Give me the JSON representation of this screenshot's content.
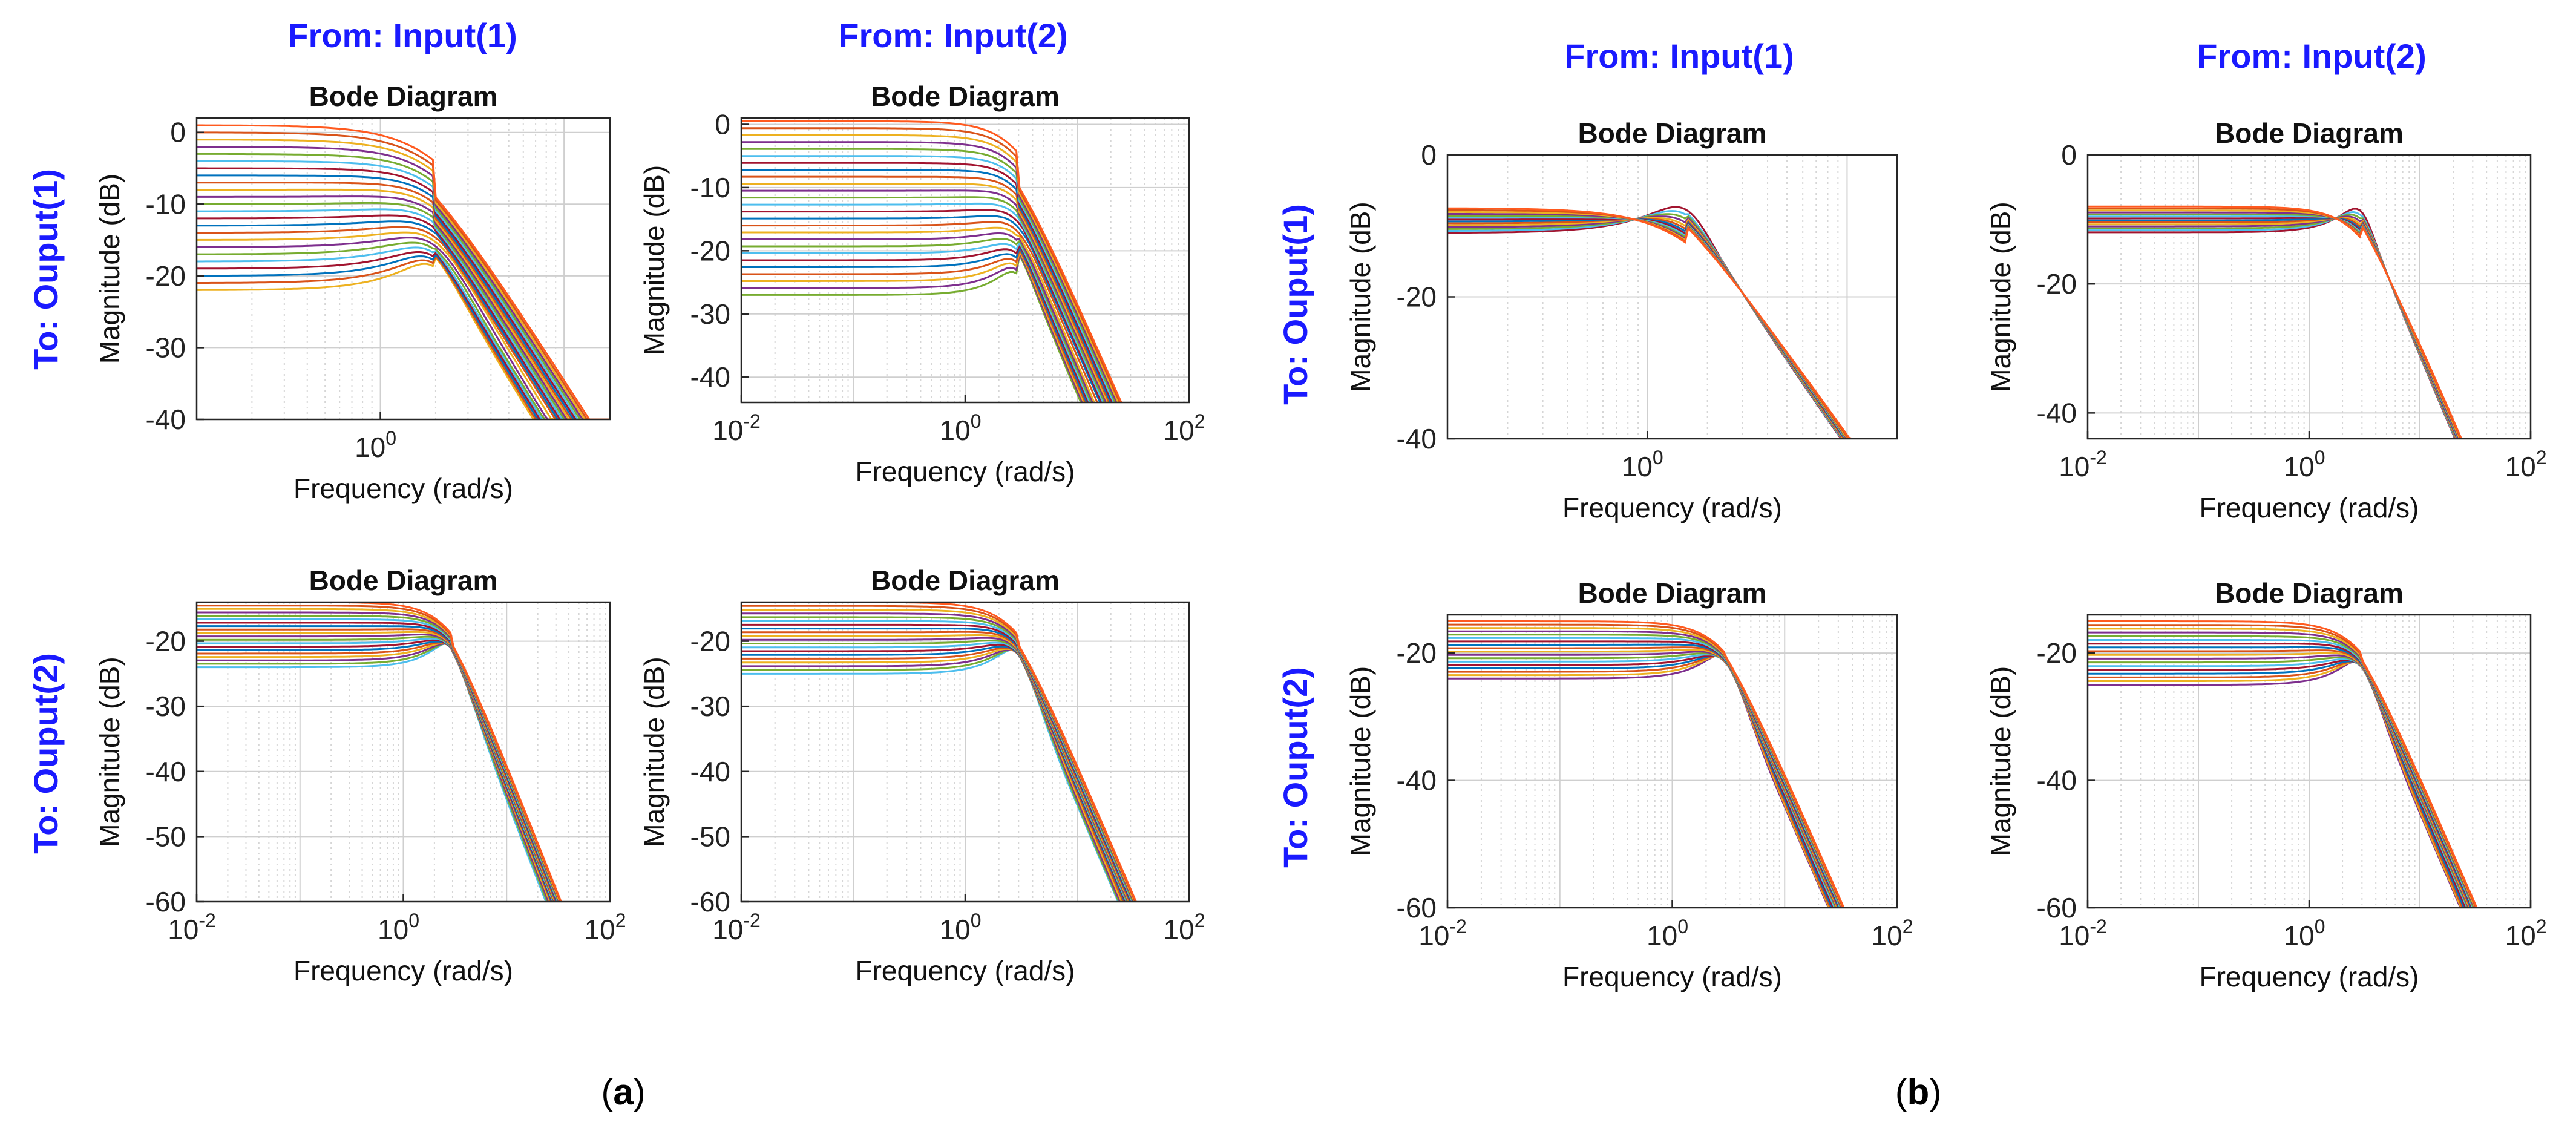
{
  "panels": [
    {
      "label": "(a)",
      "col_titles": [
        "From: Input(1)",
        "From: Input(2)"
      ],
      "row_titles": [
        "To: Ouput(1)",
        "To: Ouput(2)"
      ],
      "plots": [
        {
          "col": 0,
          "row": 0,
          "title": "Bode Diagram",
          "xlabel": "Frequency  (rad/s)",
          "ylabel": "Magnitude (dB)",
          "xlim_log10": [
            -1,
            1.25
          ],
          "xtick_exps": [
            "0"
          ],
          "ylim": [
            -40,
            2
          ],
          "yticks": [
            0,
            -10,
            -20,
            -30,
            -40
          ],
          "curves": {
            "type": "lowpass-2nd",
            "dc_start": 1,
            "dc_end": -22,
            "hf_level": -40,
            "wn": 2,
            "peak": -14,
            "n": 24
          }
        },
        {
          "col": 1,
          "row": 0,
          "title": "Bode Diagram",
          "xlabel": "Frequency  (rad/s)",
          "ylabel": "Magnitude (dB)",
          "xlim_log10": [
            -2,
            2
          ],
          "xtick_exps": [
            "-2",
            "0",
            "2"
          ],
          "ylim": [
            -44,
            1
          ],
          "yticks": [
            0,
            -10,
            -20,
            -30,
            -40
          ],
          "curves": {
            "type": "lowpass-2nd",
            "dc_start": 0.5,
            "dc_end": -27,
            "hf_slope": -40,
            "wn": 3,
            "peak": -15,
            "n": 26
          }
        },
        {
          "col": 0,
          "row": 1,
          "title": "Bode Diagram",
          "xlabel": "Frequency  (rad/s)",
          "ylabel": "Magnitude (dB)",
          "xlim_log10": [
            -2,
            2
          ],
          "xtick_exps": [
            "-2",
            "0",
            "2"
          ],
          "ylim": [
            -60,
            -14
          ],
          "yticks": [
            -20,
            -30,
            -40,
            -50,
            -60
          ],
          "curves": {
            "type": "lowpass-2nd",
            "dc_start": -14,
            "dc_end": -24,
            "hf_slope": -40,
            "wn": 3,
            "peak": -22,
            "n": 20
          }
        },
        {
          "col": 1,
          "row": 1,
          "title": "Bode Diagram",
          "xlabel": "Frequency  (rad/s)",
          "ylabel": "Magnitude (dB)",
          "xlim_log10": [
            -2,
            2
          ],
          "xtick_exps": [
            "-2",
            "0",
            "2"
          ],
          "ylim": [
            -60,
            -14
          ],
          "yticks": [
            -20,
            -30,
            -40,
            -50,
            -60
          ],
          "curves": {
            "type": "lowpass-2nd",
            "dc_start": -14,
            "dc_end": -25,
            "hf_slope": -40,
            "wn": 3,
            "peak": -22,
            "n": 20
          }
        }
      ]
    },
    {
      "label": "(b)",
      "col_titles": [
        "From: Input(1)",
        "From: Input(2)"
      ],
      "row_titles": [
        "To: Ouput(1)",
        "To: Ouput(2)"
      ],
      "plots": [
        {
          "col": 0,
          "row": 0,
          "title": "Bode Diagram",
          "xlabel": "Frequency  (rad/s)",
          "ylabel": "Magnitude (dB)",
          "xlim_log10": [
            -1,
            1.25
          ],
          "xtick_exps": [
            "0"
          ],
          "ylim": [
            -40,
            0
          ],
          "yticks": [
            0,
            -20,
            -40
          ],
          "curves": {
            "type": "lowpass-2nd",
            "dc_start": -7.5,
            "dc_end": -11,
            "hf_level": -40,
            "wn": 1.6,
            "peak": -6,
            "n": 14
          }
        },
        {
          "col": 1,
          "row": 0,
          "title": "Bode Diagram",
          "xlabel": "Frequency  (rad/s)",
          "ylabel": "Magnitude (dB)",
          "xlim_log10": [
            -2,
            2
          ],
          "xtick_exps": [
            "-2",
            "0",
            "2"
          ],
          "ylim": [
            -44,
            0
          ],
          "yticks": [
            0,
            -20,
            -40
          ],
          "curves": {
            "type": "lowpass-2nd",
            "dc_start": -8,
            "dc_end": -12,
            "hf_slope": -40,
            "wn": 3,
            "peak": -7,
            "n": 14
          }
        },
        {
          "col": 0,
          "row": 1,
          "title": "Bode Diagram",
          "xlabel": "Frequency  (rad/s)",
          "ylabel": "Magnitude (dB)",
          "xlim_log10": [
            -2,
            2
          ],
          "xtick_exps": [
            "-2",
            "0",
            "2"
          ],
          "ylim": [
            -60,
            -14
          ],
          "yticks": [
            -20,
            -40,
            -60
          ],
          "curves": {
            "type": "lowpass-2nd",
            "dc_start": -15,
            "dc_end": -24,
            "hf_slope": -40,
            "wn": 3,
            "peak": -21,
            "n": 18
          }
        },
        {
          "col": 1,
          "row": 1,
          "title": "Bode Diagram",
          "xlabel": "Frequency  (rad/s)",
          "ylabel": "Magnitude (dB)",
          "xlim_log10": [
            -2,
            2
          ],
          "xtick_exps": [
            "-2",
            "0",
            "2"
          ],
          "ylim": [
            -60,
            -14
          ],
          "yticks": [
            -20,
            -40,
            -60
          ],
          "curves": {
            "type": "lowpass-2nd",
            "dc_start": -15,
            "dc_end": -25,
            "hf_slope": -40,
            "wn": 3,
            "peak": -22,
            "n": 18
          }
        }
      ]
    }
  ],
  "colors": {
    "header_blue": "#1a1aff",
    "axis": "#262626",
    "grid": "#d6d6d6",
    "series": [
      "#0072bd",
      "#d95319",
      "#edb120",
      "#7e2f8e",
      "#77ac30",
      "#4dbeee",
      "#a2142f"
    ],
    "top_curve": "#ff5a1f"
  },
  "chart_data": [
    {
      "type": "line",
      "panel": "(a)",
      "from": "Input(1)",
      "to": "Ouput(1)",
      "title": "Bode Diagram",
      "xlabel": "Frequency  (rad/s)",
      "ylabel": "Magnitude (dB)",
      "xscale": "log",
      "description": "family of ~24 low-pass curves; DC gain 0 to -22 dB, peak near 2 rad/s at about -14 dB, converging to -40 dB",
      "ylim": [
        -40,
        2
      ]
    },
    {
      "type": "line",
      "panel": "(a)",
      "from": "Input(2)",
      "to": "Ouput(1)",
      "title": "Bode Diagram",
      "xlabel": "Frequency  (rad/s)",
      "ylabel": "Magnitude (dB)",
      "xscale": "log",
      "xlim": [
        0.01,
        100
      ],
      "ylim": [
        -44,
        1
      ]
    },
    {
      "type": "line",
      "panel": "(a)",
      "from": "Input(1)",
      "to": "Ouput(2)",
      "title": "Bode Diagram",
      "xlabel": "Frequency  (rad/s)",
      "ylabel": "Magnitude (dB)",
      "xscale": "log",
      "xlim": [
        0.01,
        100
      ],
      "ylim": [
        -60,
        -14
      ]
    },
    {
      "type": "line",
      "panel": "(a)",
      "from": "Input(2)",
      "to": "Ouput(2)",
      "title": "Bode Diagram",
      "xlabel": "Frequency  (rad/s)",
      "ylabel": "Magnitude (dB)",
      "xscale": "log",
      "xlim": [
        0.01,
        100
      ],
      "ylim": [
        -60,
        -14
      ]
    },
    {
      "type": "line",
      "panel": "(b)",
      "from": "Input(1)",
      "to": "Ouput(1)",
      "title": "Bode Diagram",
      "xlabel": "Frequency  (rad/s)",
      "ylabel": "Magnitude (dB)",
      "xscale": "log",
      "ylim": [
        -40,
        0
      ]
    },
    {
      "type": "line",
      "panel": "(b)",
      "from": "Input(2)",
      "to": "Ouput(1)",
      "title": "Bode Diagram",
      "xlabel": "Frequency  (rad/s)",
      "ylabel": "Magnitude (dB)",
      "xscale": "log",
      "xlim": [
        0.01,
        100
      ],
      "ylim": [
        -44,
        0
      ]
    },
    {
      "type": "line",
      "panel": "(b)",
      "from": "Input(1)",
      "to": "Ouput(2)",
      "title": "Bode Diagram",
      "xlabel": "Frequency  (rad/s)",
      "ylabel": "Magnitude (dB)",
      "xscale": "log",
      "xlim": [
        0.01,
        100
      ],
      "ylim": [
        -60,
        -14
      ]
    },
    {
      "type": "line",
      "panel": "(b)",
      "from": "Input(2)",
      "to": "Ouput(2)",
      "title": "Bode Diagram",
      "xlabel": "Frequency  (rad/s)",
      "ylabel": "Magnitude (dB)",
      "xscale": "log",
      "xlim": [
        0.01,
        100
      ],
      "ylim": [
        -60,
        -14
      ]
    }
  ]
}
